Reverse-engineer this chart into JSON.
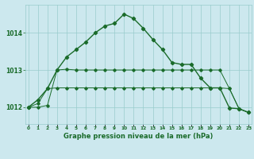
{
  "bg_color": "#cce8ee",
  "grid_color": "#99cccc",
  "line_color": "#1a6b2a",
  "series1": [
    1012.0,
    1012.2,
    1012.5,
    1013.0,
    1013.35,
    1013.55,
    1013.75,
    1014.0,
    1014.18,
    1014.25,
    1014.5,
    1014.38,
    1014.12,
    1013.82,
    1013.55,
    1013.2,
    1013.15,
    1013.15,
    1012.78,
    1012.52,
    1012.52,
    1011.98,
    1011.96,
    1011.86
  ],
  "series2": [
    1012.0,
    1012.1,
    1012.5,
    1012.52,
    1012.52,
    1012.52,
    1012.52,
    1012.52,
    1012.52,
    1012.52,
    1012.52,
    1012.52,
    1012.52,
    1012.52,
    1012.52,
    1012.52,
    1012.52,
    1012.52,
    1012.52,
    1012.52,
    1012.52,
    1012.5,
    1011.96,
    1011.86
  ],
  "series3": [
    1012.0,
    1012.0,
    1012.05,
    1013.0,
    1013.02,
    1013.0,
    1013.0,
    1013.0,
    1013.0,
    1013.0,
    1013.0,
    1013.0,
    1013.0,
    1013.0,
    1013.0,
    1013.0,
    1013.0,
    1013.0,
    1013.0,
    1013.0,
    1013.0,
    1012.5,
    1011.96,
    1011.86
  ],
  "yticks": [
    1012,
    1013,
    1014
  ],
  "ylim": [
    1011.55,
    1014.75
  ],
  "xlim": [
    -0.3,
    23.3
  ],
  "xlabel": "Graphe pression niveau de la mer (hPa)",
  "xlabel_fontsize": 6.0,
  "ytick_fontsize": 5.5,
  "xtick_fontsize": 4.2
}
